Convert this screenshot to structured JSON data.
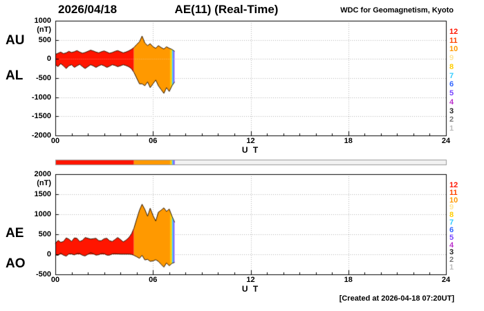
{
  "header": {
    "date": "2026/04/18",
    "title": "AE(11) (Real-Time)",
    "source": "WDC for Geomagnetism, Kyoto"
  },
  "footer": {
    "created": "[Created at 2026-04-18 07:20UT]"
  },
  "station_legend": {
    "values": [
      "12",
      "11",
      "10",
      "9",
      "8",
      "7",
      "6",
      "5",
      "4",
      "3",
      "2",
      "1"
    ],
    "colors": [
      "#ff1500",
      "#ff4400",
      "#ff9900",
      "#ffe699",
      "#ffcc00",
      "#33ccff",
      "#3366ff",
      "#7744ff",
      "#bb33cc",
      "#222222",
      "#777777",
      "#bbbbbb"
    ]
  },
  "color_segments": [
    {
      "from": 0.0,
      "to": 4.83,
      "stations": 12,
      "color": "#ff1500"
    },
    {
      "from": 4.83,
      "to": 7.05,
      "stations": 10,
      "color": "#ff9900"
    },
    {
      "from": 7.05,
      "to": 7.17,
      "stations": 8,
      "color": "#ffcc00"
    },
    {
      "from": 7.17,
      "to": 7.25,
      "stations": 7,
      "color": "#33ccff"
    },
    {
      "from": 7.25,
      "to": 7.33,
      "stations": 5,
      "color": "#7744ff"
    }
  ],
  "chart_data": [
    {
      "type": "area",
      "name": "AU-AL panel",
      "ylabel": "(nT)",
      "xlabel": "U T",
      "ylim": [
        -2000,
        1000
      ],
      "yticks": [
        1000,
        500,
        0,
        -500,
        -1000,
        -1500,
        -2000
      ],
      "xlim": [
        0,
        24
      ],
      "xticks": [
        0,
        6,
        12,
        18,
        24
      ],
      "xtick_labels": [
        "00",
        "06",
        "12",
        "18",
        "24"
      ],
      "left_labels": [
        "AU",
        "AL"
      ],
      "grid": true,
      "x": [
        0,
        0.17,
        0.33,
        0.5,
        0.67,
        0.83,
        1,
        1.17,
        1.33,
        1.5,
        1.67,
        1.83,
        2,
        2.17,
        2.33,
        2.5,
        2.67,
        2.83,
        3,
        3.17,
        3.33,
        3.5,
        3.67,
        3.83,
        4,
        4.17,
        4.33,
        4.5,
        4.67,
        4.83,
        5,
        5.17,
        5.33,
        5.5,
        5.67,
        5.83,
        6,
        6.17,
        6.33,
        6.5,
        6.67,
        6.83,
        7,
        7.17,
        7.33
      ],
      "series": [
        {
          "name": "AU",
          "values": [
            120,
            150,
            180,
            140,
            160,
            200,
            170,
            190,
            220,
            180,
            150,
            170,
            200,
            230,
            210,
            180,
            160,
            190,
            210,
            180,
            150,
            170,
            200,
            220,
            190,
            160,
            180,
            210,
            250,
            300,
            380,
            450,
            600,
            420,
            350,
            400,
            320,
            280,
            350,
            300,
            260,
            320,
            280,
            250,
            200
          ]
        },
        {
          "name": "AL",
          "values": [
            -150,
            -200,
            -120,
            -180,
            -250,
            -180,
            -150,
            -220,
            -180,
            -140,
            -200,
            -250,
            -200,
            -150,
            -180,
            -220,
            -180,
            -150,
            -180,
            -220,
            -190,
            -150,
            -170,
            -200,
            -180,
            -150,
            -170,
            -200,
            -250,
            -350,
            -500,
            -650,
            -650,
            -700,
            -600,
            -750,
            -650,
            -550,
            -700,
            -800,
            -900,
            -750,
            -850,
            -700,
            -600
          ]
        }
      ]
    },
    {
      "type": "area",
      "name": "AE-AO panel",
      "ylabel": "(nT)",
      "xlabel": "U T",
      "ylim": [
        -500,
        2000
      ],
      "yticks": [
        2000,
        1500,
        1000,
        500,
        0,
        -500
      ],
      "xlim": [
        0,
        24
      ],
      "xticks": [
        0,
        6,
        12,
        18,
        24
      ],
      "xtick_labels": [
        "00",
        "06",
        "12",
        "18",
        "24"
      ],
      "left_labels": [
        "AE",
        "AO"
      ],
      "grid": true,
      "x": [
        0,
        0.17,
        0.33,
        0.5,
        0.67,
        0.83,
        1,
        1.17,
        1.33,
        1.5,
        1.67,
        1.83,
        2,
        2.17,
        2.33,
        2.5,
        2.67,
        2.83,
        3,
        3.17,
        3.33,
        3.5,
        3.67,
        3.83,
        4,
        4.17,
        4.33,
        4.5,
        4.67,
        4.83,
        5,
        5.17,
        5.33,
        5.5,
        5.67,
        5.83,
        6,
        6.17,
        6.33,
        6.5,
        6.67,
        6.83,
        7,
        7.17,
        7.33
      ],
      "series": [
        {
          "name": "AE",
          "values": [
            270,
            350,
            300,
            320,
            410,
            380,
            320,
            410,
            400,
            320,
            350,
            420,
            400,
            380,
            390,
            400,
            340,
            340,
            390,
            400,
            340,
            320,
            370,
            420,
            370,
            310,
            350,
            410,
            500,
            650,
            880,
            1100,
            1250,
            1120,
            950,
            1150,
            970,
            830,
            1050,
            1100,
            1160,
            1070,
            1130,
            950,
            800
          ]
        },
        {
          "name": "AO",
          "values": [
            -15,
            -25,
            30,
            -20,
            -45,
            10,
            10,
            -15,
            20,
            20,
            -25,
            -40,
            0,
            40,
            15,
            -20,
            -10,
            20,
            15,
            -20,
            -20,
            10,
            15,
            10,
            5,
            5,
            5,
            5,
            0,
            -25,
            -60,
            -100,
            -25,
            -140,
            -125,
            -175,
            -165,
            -135,
            -175,
            -250,
            -320,
            -215,
            -285,
            -225,
            -200
          ]
        }
      ]
    }
  ]
}
